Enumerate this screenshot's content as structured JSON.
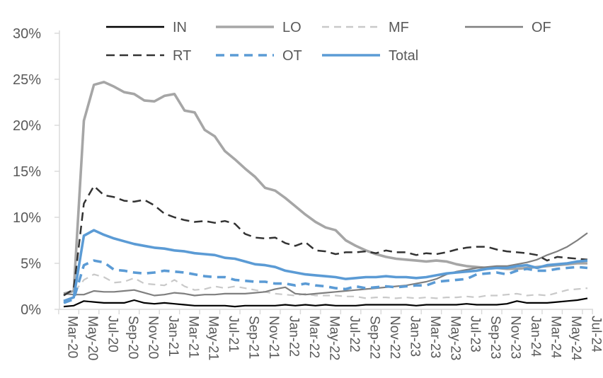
{
  "chart_data": {
    "type": "line",
    "title": "",
    "xlabel": "",
    "ylabel": "",
    "ylim": [
      0,
      30
    ],
    "yticks": [
      0,
      5,
      10,
      15,
      20,
      25,
      30
    ],
    "ytick_labels": [
      "0%",
      "5%",
      "10%",
      "15%",
      "20%",
      "25%",
      "30%"
    ],
    "grid": false,
    "legend_position": "top",
    "axis_color": "#d9d9d9",
    "label_color": "#595959",
    "x_label_every": 2,
    "x": [
      "Mar-20",
      "Apr-20",
      "May-20",
      "Jun-20",
      "Jul-20",
      "Aug-20",
      "Sep-20",
      "Oct-20",
      "Nov-20",
      "Dec-20",
      "Jan-21",
      "Feb-21",
      "Mar-21",
      "Apr-21",
      "May-21",
      "Jun-21",
      "Jul-21",
      "Aug-21",
      "Sep-21",
      "Oct-21",
      "Nov-21",
      "Dec-21",
      "Jan-22",
      "Feb-22",
      "Mar-22",
      "Apr-22",
      "May-22",
      "Jun-22",
      "Jul-22",
      "Aug-22",
      "Sep-22",
      "Oct-22",
      "Nov-22",
      "Dec-22",
      "Jan-23",
      "Feb-23",
      "Mar-23",
      "Apr-23",
      "May-23",
      "Jun-23",
      "Jul-23",
      "Aug-23",
      "Sep-23",
      "Oct-23",
      "Nov-23",
      "Dec-23",
      "Jan-24",
      "Feb-24",
      "Mar-24",
      "Apr-24",
      "May-24",
      "Jun-24",
      "Jul-24"
    ],
    "series": [
      {
        "name": "IN",
        "color": "#000000",
        "style": "solid",
        "width": 2.2,
        "dash": null,
        "values": [
          0.3,
          0.4,
          0.9,
          0.8,
          0.7,
          0.7,
          0.7,
          1.0,
          0.7,
          0.6,
          0.7,
          0.6,
          0.5,
          0.4,
          0.4,
          0.4,
          0.4,
          0.3,
          0.4,
          0.4,
          0.4,
          0.4,
          0.5,
          0.4,
          0.5,
          0.4,
          0.5,
          0.4,
          0.4,
          0.4,
          0.5,
          0.5,
          0.5,
          0.5,
          0.5,
          0.4,
          0.5,
          0.5,
          0.5,
          0.5,
          0.6,
          0.5,
          0.5,
          0.5,
          0.6,
          0.9,
          0.7,
          0.7,
          0.7,
          0.8,
          0.9,
          1.0,
          1.2
        ]
      },
      {
        "name": "LO",
        "color": "#a6a6a6",
        "style": "solid",
        "width": 3.6,
        "dash": null,
        "values": [
          1.7,
          2.0,
          20.5,
          24.4,
          24.7,
          24.2,
          23.6,
          23.4,
          22.7,
          22.6,
          23.2,
          23.4,
          21.6,
          21.4,
          19.5,
          18.8,
          17.2,
          16.3,
          15.3,
          14.4,
          13.2,
          12.9,
          12.1,
          11.2,
          10.3,
          9.5,
          8.9,
          8.6,
          7.5,
          6.9,
          6.4,
          6.0,
          5.7,
          5.5,
          5.4,
          5.3,
          5.2,
          5.3,
          5.2,
          4.9,
          4.7,
          4.6,
          4.5,
          4.5,
          4.4,
          4.4,
          4.5,
          4.6,
          4.7,
          4.8,
          4.9,
          5.0,
          5.0
        ]
      },
      {
        "name": "MF",
        "color": "#c9c9c9",
        "style": "dashed",
        "width": 2.2,
        "dash": "10,7",
        "values": [
          1.6,
          1.8,
          3.2,
          3.8,
          3.5,
          2.9,
          3.0,
          3.4,
          2.8,
          2.7,
          2.6,
          3.2,
          2.5,
          2.1,
          2.2,
          2.5,
          2.3,
          2.5,
          2.3,
          2.1,
          1.9,
          1.7,
          1.6,
          1.5,
          1.7,
          1.5,
          1.5,
          1.5,
          1.4,
          1.4,
          1.2,
          1.3,
          1.3,
          1.2,
          1.3,
          1.2,
          1.3,
          1.2,
          1.3,
          1.3,
          1.4,
          1.3,
          1.5,
          1.5,
          1.6,
          1.7,
          1.5,
          1.6,
          1.5,
          1.8,
          2.1,
          2.2,
          2.3
        ]
      },
      {
        "name": "OF",
        "color": "#7f7f7f",
        "style": "solid",
        "width": 2.2,
        "dash": null,
        "values": [
          1.7,
          1.6,
          1.6,
          2.0,
          1.9,
          1.9,
          2.0,
          2.1,
          1.8,
          1.5,
          1.6,
          1.8,
          1.7,
          1.5,
          1.6,
          1.6,
          1.7,
          1.7,
          1.7,
          1.8,
          1.9,
          2.2,
          2.4,
          1.7,
          1.6,
          1.7,
          1.8,
          1.9,
          2.0,
          2.1,
          2.2,
          2.3,
          2.4,
          2.5,
          2.6,
          2.8,
          3.0,
          3.3,
          3.8,
          4.1,
          4.3,
          4.5,
          4.6,
          4.7,
          4.7,
          4.9,
          5.1,
          5.4,
          5.9,
          6.3,
          6.8,
          7.5,
          8.3
        ]
      },
      {
        "name": "RT",
        "color": "#333333",
        "style": "dashed",
        "width": 2.5,
        "dash": "12,7",
        "values": [
          1.5,
          2.2,
          11.5,
          13.4,
          12.4,
          12.2,
          11.8,
          11.7,
          11.9,
          11.3,
          10.4,
          10.0,
          9.7,
          9.5,
          9.6,
          9.4,
          9.6,
          9.3,
          8.2,
          7.8,
          7.7,
          7.8,
          7.2,
          6.9,
          7.3,
          6.4,
          6.3,
          6.0,
          6.2,
          6.2,
          6.3,
          6.1,
          6.4,
          6.2,
          6.2,
          5.9,
          6.1,
          6.0,
          6.2,
          6.5,
          6.7,
          6.8,
          6.8,
          6.5,
          6.3,
          6.2,
          6.1,
          5.9,
          5.3,
          5.7,
          5.6,
          5.5,
          5.4
        ]
      },
      {
        "name": "OT",
        "color": "#5b9bd5",
        "style": "dashed",
        "width": 3.6,
        "dash": "12,8",
        "values": [
          0.7,
          1.1,
          4.8,
          5.3,
          5.1,
          4.3,
          4.2,
          4.0,
          3.9,
          4.0,
          4.2,
          4.1,
          4.0,
          3.8,
          3.6,
          3.5,
          3.5,
          3.2,
          3.1,
          3.0,
          3.0,
          2.8,
          2.8,
          2.6,
          2.8,
          2.6,
          2.5,
          2.3,
          2.2,
          2.5,
          2.3,
          2.4,
          2.5,
          2.4,
          2.5,
          2.6,
          2.6,
          3.0,
          3.1,
          3.2,
          3.3,
          3.8,
          3.9,
          4.0,
          3.8,
          4.2,
          4.4,
          4.2,
          4.2,
          4.4,
          4.5,
          4.6,
          4.5
        ]
      },
      {
        "name": "Total",
        "color": "#5b9bd5",
        "style": "solid",
        "width": 3.6,
        "dash": null,
        "values": [
          0.9,
          1.3,
          8.0,
          8.6,
          8.1,
          7.7,
          7.4,
          7.1,
          6.9,
          6.7,
          6.6,
          6.4,
          6.3,
          6.1,
          6.0,
          5.9,
          5.6,
          5.5,
          5.2,
          4.9,
          4.8,
          4.6,
          4.2,
          4.0,
          3.8,
          3.7,
          3.6,
          3.5,
          3.3,
          3.4,
          3.5,
          3.5,
          3.6,
          3.5,
          3.5,
          3.4,
          3.5,
          3.7,
          3.9,
          4.0,
          4.1,
          4.2,
          4.4,
          4.5,
          4.5,
          4.7,
          4.8,
          4.5,
          4.8,
          4.9,
          5.0,
          5.2,
          5.3
        ]
      }
    ]
  }
}
